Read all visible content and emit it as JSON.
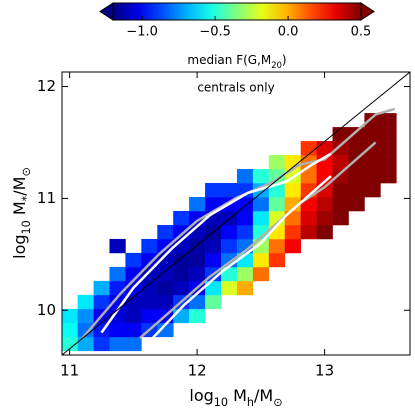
{
  "chart_data": {
    "type": "heatmap",
    "annotation": "centrals only",
    "xlabel": [
      "log",
      "10",
      " M",
      "h",
      "/M",
      "⊙"
    ],
    "ylabel": [
      "log",
      "10",
      " M",
      "*",
      "/M",
      "⊙"
    ],
    "colorbar_label": [
      "median F(G,M",
      "20",
      ")"
    ],
    "colormap": "jet",
    "clim": [
      -1.2,
      0.5
    ],
    "cticks": [
      {
        "value": -1.0,
        "label": "−1.0"
      },
      {
        "value": -0.5,
        "label": "−0.5"
      },
      {
        "value": 0.0,
        "label": "0.0"
      },
      {
        "value": 0.5,
        "label": "0.5"
      }
    ],
    "xlim": [
      10.94,
      13.67
    ],
    "ylim": [
      9.6,
      12.13
    ],
    "xticks": [
      11,
      12,
      13
    ],
    "yticks": [
      10,
      11,
      12
    ],
    "x": [
      11.0,
      11.125,
      11.25,
      11.375,
      11.5,
      11.625,
      11.75,
      11.875,
      12.0,
      12.125,
      12.25,
      12.375,
      12.5,
      12.625,
      12.75,
      12.875,
      13.0,
      13.125,
      13.25,
      13.375,
      13.5
    ],
    "y": [
      9.7,
      9.825,
      9.95,
      10.075,
      10.2,
      10.325,
      10.45,
      10.575,
      10.7,
      10.825,
      10.95,
      11.075,
      11.2,
      11.325,
      11.45,
      11.575,
      11.7
    ],
    "values": [
      [
        -0.5,
        -0.55,
        -0.6,
        null,
        null,
        null,
        null,
        null,
        null,
        null,
        null,
        null,
        null,
        null,
        null,
        null,
        null
      ],
      [
        -0.7,
        -0.8,
        -0.75,
        -0.6,
        null,
        null,
        null,
        null,
        null,
        null,
        null,
        null,
        null,
        null,
        null,
        null,
        null
      ],
      [
        -0.9,
        -0.95,
        -1.0,
        -0.9,
        -0.7,
        null,
        null,
        null,
        null,
        null,
        null,
        null,
        null,
        null,
        null,
        null,
        null
      ],
      [
        -0.8,
        -1.0,
        -1.05,
        -1.0,
        -0.95,
        -0.8,
        null,
        -1.1,
        null,
        null,
        null,
        null,
        null,
        null,
        null,
        null,
        null
      ],
      [
        -0.8,
        -1.0,
        -1.1,
        -1.1,
        -1.0,
        -1.0,
        -0.9,
        null,
        null,
        null,
        null,
        null,
        null,
        null,
        null,
        null,
        null
      ],
      [
        null,
        -0.9,
        -1.0,
        -1.1,
        -1.1,
        -1.1,
        -1.0,
        -0.9,
        null,
        null,
        null,
        null,
        null,
        null,
        null,
        null,
        null
      ],
      [
        null,
        -0.8,
        -1.0,
        -1.1,
        -1.15,
        -1.1,
        -1.1,
        -1.0,
        -0.9,
        null,
        null,
        null,
        null,
        null,
        null,
        null,
        null
      ],
      [
        null,
        null,
        -0.7,
        -0.9,
        -1.1,
        -1.15,
        -1.15,
        -1.1,
        -1.0,
        -0.9,
        null,
        null,
        null,
        null,
        null,
        null,
        null
      ],
      [
        null,
        null,
        -0.5,
        -0.8,
        -1.0,
        -1.1,
        -1.15,
        -1.15,
        -1.1,
        -1.0,
        -0.8,
        null,
        null,
        null,
        null,
        null,
        null
      ],
      [
        null,
        null,
        null,
        -0.4,
        -0.6,
        -0.9,
        -1.0,
        -1.1,
        -1.15,
        -1.1,
        -1.0,
        -0.9,
        null,
        null,
        null,
        null,
        null
      ],
      [
        null,
        null,
        null,
        null,
        -0.2,
        -0.5,
        -0.8,
        -0.9,
        -1.0,
        -1.1,
        -1.0,
        -0.9,
        null,
        null,
        null,
        null,
        null
      ],
      [
        null,
        null,
        null,
        null,
        0.0,
        -0.3,
        -0.6,
        -0.8,
        -0.9,
        -1.0,
        -1.0,
        -0.9,
        -0.8,
        null,
        null,
        null,
        null
      ],
      [
        null,
        null,
        null,
        null,
        null,
        0.1,
        -0.1,
        -0.3,
        -0.5,
        -0.6,
        -0.8,
        -0.7,
        -0.5,
        null,
        null,
        null,
        null
      ],
      [
        null,
        null,
        null,
        null,
        null,
        null,
        0.2,
        0.1,
        -0.1,
        -0.2,
        -0.4,
        -0.5,
        -0.4,
        -0.3,
        null,
        null,
        null
      ],
      [
        null,
        null,
        null,
        null,
        null,
        null,
        null,
        0.3,
        0.2,
        0.1,
        0.0,
        -0.1,
        -0.2,
        -0.1,
        null,
        null,
        null
      ],
      [
        null,
        null,
        null,
        null,
        null,
        null,
        null,
        null,
        0.4,
        0.35,
        0.3,
        0.2,
        0.1,
        0.1,
        0.2,
        null,
        null
      ],
      [
        null,
        null,
        null,
        null,
        null,
        null,
        null,
        null,
        0.5,
        0.45,
        0.4,
        0.35,
        0.3,
        0.3,
        0.35,
        null,
        null
      ],
      [
        null,
        null,
        null,
        null,
        null,
        null,
        null,
        null,
        null,
        0.5,
        0.5,
        0.5,
        0.45,
        0.4,
        0.45,
        0.5,
        null
      ],
      [
        null,
        null,
        null,
        null,
        null,
        null,
        null,
        null,
        null,
        null,
        0.5,
        0.5,
        0.5,
        0.5,
        0.5,
        0.5,
        null
      ],
      [
        null,
        null,
        null,
        null,
        null,
        null,
        null,
        null,
        null,
        null,
        null,
        0.5,
        0.5,
        0.5,
        0.5,
        0.5,
        0.5
      ],
      [
        null,
        null,
        null,
        null,
        null,
        null,
        null,
        null,
        null,
        null,
        null,
        null,
        0.5,
        0.5,
        0.5,
        0.5,
        0.5
      ]
    ],
    "lines": [
      {
        "color": "#b0b0b0",
        "x": [
          11.1,
          11.4,
          11.7,
          12.0,
          12.3,
          12.6,
          12.8,
          13.0,
          13.2,
          13.4,
          13.55
        ],
        "y": [
          9.75,
          10.15,
          10.5,
          10.8,
          11.0,
          11.15,
          11.3,
          11.35,
          11.55,
          11.75,
          11.8
        ]
      },
      {
        "color": "#b0b0b0",
        "x": [
          11.55,
          11.8,
          12.1,
          12.4,
          12.6,
          12.8,
          13.0,
          13.2,
          13.4
        ],
        "y": [
          9.75,
          10.0,
          10.3,
          10.55,
          10.75,
          10.95,
          11.1,
          11.3,
          11.5
        ]
      },
      {
        "color": "#ffffff",
        "x": [
          11.25,
          11.5,
          11.8,
          12.1,
          12.4,
          12.7,
          12.9,
          13.05
        ],
        "y": [
          9.8,
          10.2,
          10.55,
          10.85,
          11.05,
          11.15,
          11.3,
          11.4
        ]
      },
      {
        "color": "#ffffff",
        "x": [
          11.65,
          11.9,
          12.2,
          12.5,
          12.7,
          12.9,
          13.05
        ],
        "y": [
          9.75,
          10.05,
          10.35,
          10.6,
          10.85,
          11.05,
          11.2
        ]
      },
      {
        "color": "#000000",
        "x": [
          10.94,
          13.67
        ],
        "y": [
          9.6,
          12.13
        ]
      }
    ]
  }
}
